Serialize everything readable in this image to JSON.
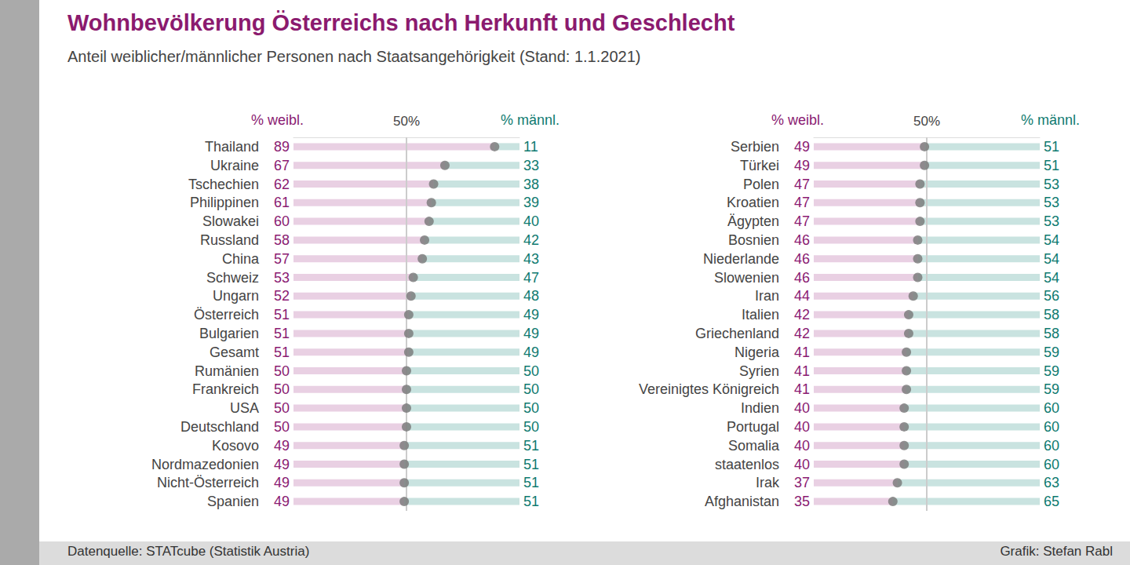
{
  "title": "Wohnbevölkerung Österreichs nach Herkunft und Geschlecht",
  "subtitle": "Anteil weiblicher/männlicher Personen nach Staatsangehörigkeit (Stand: 1.1.2021)",
  "source": "Datenquelle: STATcube (Statistik Austria)",
  "credit": "Grafik: Stefan Rabl",
  "chart_data": [
    {
      "type": "bar",
      "orientation": "horizontal",
      "stacked": true,
      "data_labels": true,
      "grid": true,
      "xlim": [
        0,
        100
      ],
      "xticks": [
        {
          "value": 50,
          "label": "50%"
        }
      ],
      "categories": [
        "Thailand",
        "Ukraine",
        "Tschechien",
        "Philippinen",
        "Slowakei",
        "Russland",
        "China",
        "Schweiz",
        "Ungarn",
        "Österreich",
        "Bulgarien",
        "Gesamt",
        "Rumänien",
        "Frankreich",
        "USA",
        "Deutschland",
        "Kosovo",
        "Nordmazedonien",
        "Nicht-Österreich",
        "Spanien"
      ],
      "series": [
        {
          "name": "% weibl.",
          "color": "#e9d0e3",
          "marker": "circle",
          "values": [
            89,
            67,
            62,
            61,
            60,
            58,
            57,
            53,
            52,
            51,
            51,
            51,
            50,
            50,
            50,
            50,
            49,
            49,
            49,
            49
          ]
        },
        {
          "name": "% männl.",
          "color": "#c9e3e0",
          "values": [
            11,
            33,
            38,
            39,
            40,
            42,
            43,
            47,
            48,
            49,
            49,
            49,
            50,
            50,
            50,
            50,
            51,
            51,
            51,
            51
          ]
        }
      ]
    },
    {
      "type": "bar",
      "orientation": "horizontal",
      "stacked": true,
      "data_labels": true,
      "grid": true,
      "xlim": [
        0,
        100
      ],
      "xticks": [
        {
          "value": 50,
          "label": "50%"
        }
      ],
      "categories": [
        "Serbien",
        "Türkei",
        "Polen",
        "Kroatien",
        "Ägypten",
        "Bosnien",
        "Niederlande",
        "Slowenien",
        "Iran",
        "Italien",
        "Griechenland",
        "Nigeria",
        "Syrien",
        "Vereinigtes Königreich",
        "Indien",
        "Portugal",
        "Somalia",
        "staatenlos",
        "Irak",
        "Afghanistan"
      ],
      "series": [
        {
          "name": "% weibl.",
          "color": "#e9d0e3",
          "marker": "circle",
          "values": [
            49,
            49,
            47,
            47,
            47,
            46,
            46,
            46,
            44,
            42,
            42,
            41,
            41,
            41,
            40,
            40,
            40,
            40,
            37,
            35
          ]
        },
        {
          "name": "% männl.",
          "color": "#c9e3e0",
          "values": [
            51,
            51,
            53,
            53,
            53,
            54,
            54,
            54,
            56,
            58,
            58,
            59,
            59,
            59,
            60,
            60,
            60,
            60,
            63,
            65
          ]
        }
      ]
    }
  ]
}
